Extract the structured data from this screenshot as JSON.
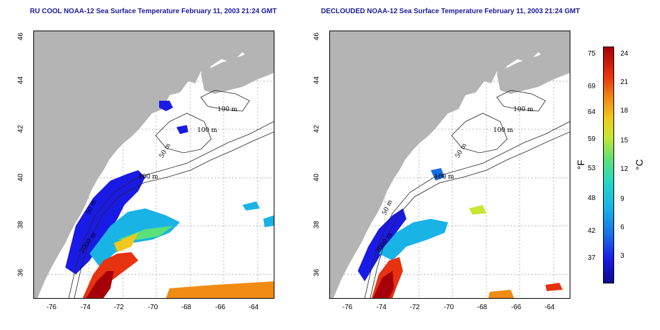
{
  "titles": {
    "left": "RU COOL NOAA-12 Sea Surface Temperature February 11, 2003 21:24 GMT",
    "right": "DECLOUDED NOAA-12 Sea Surface Temperature February 11, 2003 21:24 GMT"
  },
  "axes": {
    "lat_ticks": [
      "46",
      "44",
      "42",
      "40",
      "38",
      "36"
    ],
    "lon_ticks": [
      "-76",
      "-74",
      "-72",
      "-70",
      "-68",
      "-66",
      "-64"
    ],
    "lat_range": [
      35,
      46
    ],
    "lon_range": [
      -77,
      -63
    ]
  },
  "contour_labels": {
    "left": [
      "100 m",
      "100 m",
      "50 m",
      "100 m",
      "50 m",
      "2000 m"
    ],
    "right": [
      "100 m",
      "100 m",
      "50 m",
      "100 m",
      "50 m",
      "2000 m"
    ]
  },
  "colorbar": {
    "fahrenheit": [
      "75",
      "69",
      "64",
      "59",
      "53",
      "48",
      "42",
      "37"
    ],
    "celsius": [
      "24",
      "21",
      "18",
      "15",
      "12",
      "9",
      "6",
      "3"
    ],
    "unit_f": "°F",
    "unit_c": "°C",
    "colors": [
      "#0a0a8c",
      "#1a1ae6",
      "#1a6be6",
      "#19b3e6",
      "#23d6c8",
      "#5ce07a",
      "#c8e632",
      "#f0c81e",
      "#f08c14",
      "#e6320f",
      "#a5000a"
    ]
  },
  "colors": {
    "land": "#b4b4b4",
    "ocean": "#ffffff",
    "title": "#1a1a99",
    "grid": "#999999"
  }
}
